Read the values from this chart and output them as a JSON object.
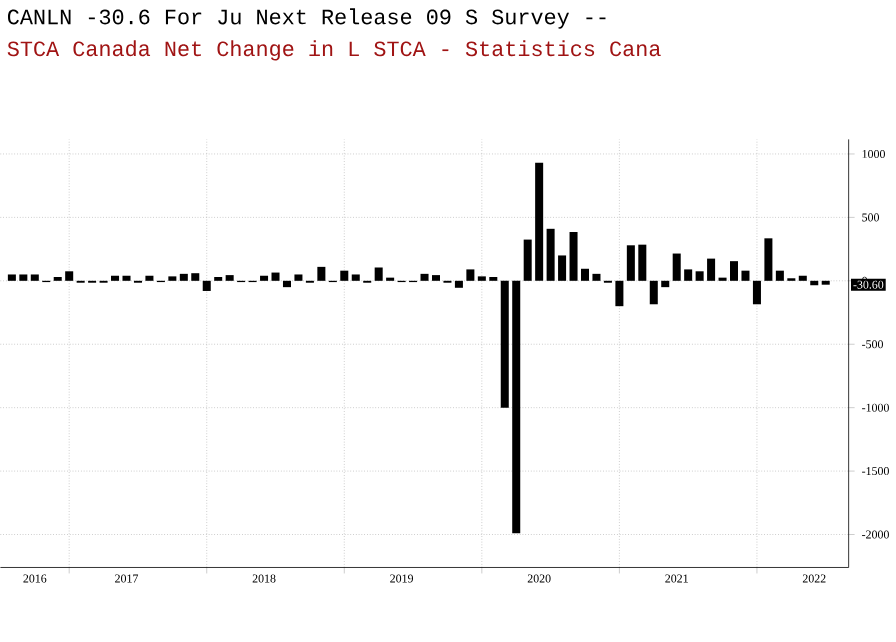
{
  "chart_data": {
    "type": "bar",
    "title": "CANLN -30.6 For Ju Next Release 09 S Survey --",
    "subtitle": "STCA Canada Net Change in L STCA - Statistics Cana",
    "x": [
      "2016-08",
      "2016-09",
      "2016-10",
      "2016-11",
      "2016-12",
      "2017-01",
      "2017-02",
      "2017-03",
      "2017-04",
      "2017-05",
      "2017-06",
      "2017-07",
      "2017-08",
      "2017-09",
      "2017-10",
      "2017-11",
      "2017-12",
      "2018-01",
      "2018-02",
      "2018-03",
      "2018-04",
      "2018-05",
      "2018-06",
      "2018-07",
      "2018-08",
      "2018-09",
      "2018-10",
      "2018-11",
      "2018-12",
      "2019-01",
      "2019-02",
      "2019-03",
      "2019-04",
      "2019-05",
      "2019-06",
      "2019-07",
      "2019-08",
      "2019-09",
      "2019-10",
      "2019-11",
      "2019-12",
      "2020-01",
      "2020-02",
      "2020-03",
      "2020-04",
      "2020-05",
      "2020-06",
      "2020-07",
      "2020-08",
      "2020-09",
      "2020-10",
      "2020-11",
      "2020-12",
      "2021-01",
      "2021-02",
      "2021-03",
      "2021-04",
      "2021-05",
      "2021-06",
      "2021-07",
      "2021-08",
      "2021-09",
      "2021-10",
      "2021-11",
      "2021-12",
      "2022-01",
      "2022-02",
      "2022-03",
      "2022-04",
      "2022-05",
      "2022-06",
      "2022-07"
    ],
    "values": [
      50,
      50,
      50,
      -10,
      30,
      75,
      -15,
      -15,
      -15,
      40,
      40,
      -15,
      40,
      -10,
      35,
      55,
      60,
      -80,
      30,
      45,
      -10,
      -10,
      40,
      65,
      -50,
      50,
      -15,
      110,
      -10,
      80,
      50,
      -15,
      105,
      25,
      -10,
      -10,
      55,
      45,
      -15,
      -55,
      90,
      35,
      30,
      -1000,
      -1990,
      325,
      930,
      410,
      200,
      385,
      95,
      55,
      -15,
      -200,
      280,
      285,
      -185,
      -50,
      215,
      90,
      75,
      175,
      25,
      155,
      80,
      -185,
      335,
      80,
      20,
      40,
      -35,
      -30.6
    ],
    "color": "#000000",
    "xlim": [
      "2016-07",
      "2022-09"
    ],
    "xticks": [
      {
        "value": "2016-10",
        "label": "2016"
      },
      {
        "value": "2017-01",
        "label": null
      },
      {
        "value": "2017-06",
        "label": "2017"
      },
      {
        "value": "2018-01",
        "label": null
      },
      {
        "value": "2018-06",
        "label": "2018"
      },
      {
        "value": "2019-01",
        "label": null
      },
      {
        "value": "2019-06",
        "label": "2019"
      },
      {
        "value": "2020-01",
        "label": null
      },
      {
        "value": "2020-06",
        "label": "2020"
      },
      {
        "value": "2021-01",
        "label": null
      },
      {
        "value": "2021-06",
        "label": "2021"
      },
      {
        "value": "2022-01",
        "label": null
      },
      {
        "value": "2022-06",
        "label": "2022"
      }
    ],
    "ylim": [
      -2260,
      1115
    ],
    "yticks": [
      -2000,
      -1500,
      -1000,
      -500,
      0,
      500,
      1000
    ],
    "grid": true,
    "annotations": [
      {
        "text": "-30.60",
        "x": "2022-07",
        "y": -30.6
      }
    ]
  }
}
